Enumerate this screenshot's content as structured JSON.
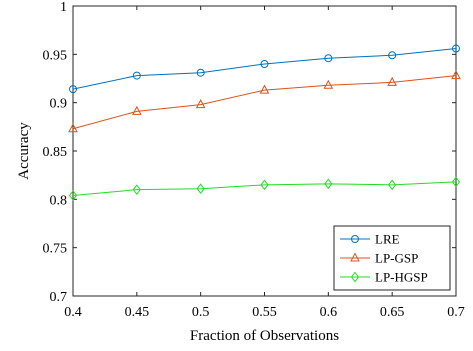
{
  "chart_data": {
    "type": "line",
    "title": "",
    "xlabel": "Fraction of Observations",
    "ylabel": "Accuracy",
    "xlim": [
      0.4,
      0.7
    ],
    "ylim": [
      0.7,
      1.0
    ],
    "x": [
      0.4,
      0.45,
      0.5,
      0.55,
      0.6,
      0.65,
      0.7
    ],
    "xticks": [
      "0.4",
      "0.45",
      "0.5",
      "0.55",
      "0.6",
      "0.65",
      "0.7"
    ],
    "yticks": [
      "0.7",
      "0.75",
      "0.8",
      "0.85",
      "0.9",
      "0.95",
      "1"
    ],
    "xtick_values": [
      0.4,
      0.45,
      0.5,
      0.55,
      0.6,
      0.65,
      0.7
    ],
    "ytick_values": [
      0.7,
      0.75,
      0.8,
      0.85,
      0.9,
      0.95,
      1.0
    ],
    "grid": false,
    "legend_position": "bottom-right",
    "series": [
      {
        "name": "LRE",
        "color": "#0072BD",
        "marker": "circle",
        "values": [
          0.914,
          0.928,
          0.931,
          0.94,
          0.946,
          0.949,
          0.956
        ]
      },
      {
        "name": "LP-GSP",
        "color": "#D95319",
        "marker": "triangle",
        "values": [
          0.873,
          0.891,
          0.898,
          0.913,
          0.918,
          0.921,
          0.928
        ]
      },
      {
        "name": "LP-HGSP",
        "color": "#22DD22",
        "marker": "diamond",
        "values": [
          0.804,
          0.81,
          0.811,
          0.815,
          0.816,
          0.815,
          0.818
        ]
      }
    ]
  }
}
